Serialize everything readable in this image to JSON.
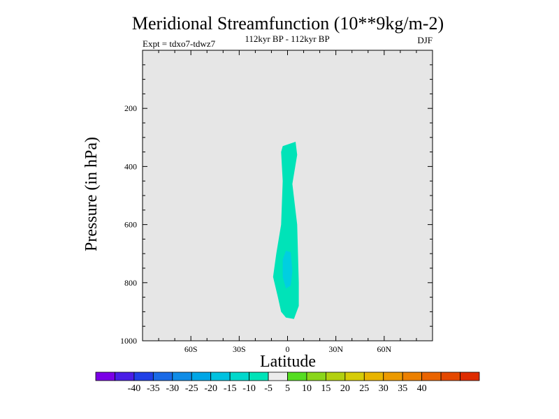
{
  "chart_data": {
    "type": "heatmap",
    "title": "Meridional Streamfunction (10**9kg/m-2)",
    "subtitle": "112kyr BP - 112kyr BP",
    "left_note": "Expt = tdxo7-tdwz7",
    "right_note": "DJF",
    "xlabel": "Latitude",
    "ylabel": "Pressure (in hPa)",
    "xlim": [
      -90,
      90
    ],
    "ylim": [
      1000,
      0
    ],
    "x_ticks": [
      {
        "value": -60,
        "label": "60S"
      },
      {
        "value": -30,
        "label": "30S"
      },
      {
        "value": 0,
        "label": "0"
      },
      {
        "value": 30,
        "label": "30N"
      },
      {
        "value": 60,
        "label": "60N"
      }
    ],
    "y_ticks": [
      {
        "value": 200,
        "label": "200"
      },
      {
        "value": 400,
        "label": "400"
      },
      {
        "value": 600,
        "label": "600"
      },
      {
        "value": 800,
        "label": "800"
      },
      {
        "value": 1000,
        "label": "1000"
      }
    ],
    "background_color": "#e6e6e6",
    "contours": [
      {
        "level": "-10 to -5",
        "color": "#00e3b8",
        "points": [
          [
            -3,
            330
          ],
          [
            5,
            315
          ],
          [
            6,
            360
          ],
          [
            3,
            460
          ],
          [
            6,
            600
          ],
          [
            7,
            800
          ],
          [
            7,
            880
          ],
          [
            4,
            925
          ],
          [
            -1,
            920
          ],
          [
            -4,
            900
          ],
          [
            -6,
            850
          ],
          [
            -9,
            780
          ],
          [
            -7,
            700
          ],
          [
            -4,
            600
          ],
          [
            -3,
            450
          ],
          [
            -4,
            350
          ]
        ]
      },
      {
        "level": "-15 to -10",
        "color": "#00cfe0",
        "points": [
          [
            -1,
            690
          ],
          [
            2,
            695
          ],
          [
            3,
            760
          ],
          [
            2,
            810
          ],
          [
            -1,
            820
          ],
          [
            -3,
            780
          ],
          [
            -3,
            720
          ]
        ]
      }
    ],
    "colorbar": {
      "colors": [
        "#7b00e6",
        "#4a1ee6",
        "#2040e6",
        "#1a6ae6",
        "#108ce6",
        "#00a6e6",
        "#00c2e0",
        "#00d8cc",
        "#00e3b8",
        "#ececec",
        "#55dd22",
        "#8ad61a",
        "#b2d010",
        "#d6cc08",
        "#e8b400",
        "#ec9a00",
        "#ec8000",
        "#ea6400",
        "#e44800",
        "#de2c00"
      ],
      "labels": [
        "-40",
        "-35",
        "-30",
        "-25",
        "-20",
        "-15",
        "-10",
        "-5",
        "5",
        "10",
        "15",
        "20",
        "25",
        "30",
        "35",
        "40"
      ]
    }
  }
}
